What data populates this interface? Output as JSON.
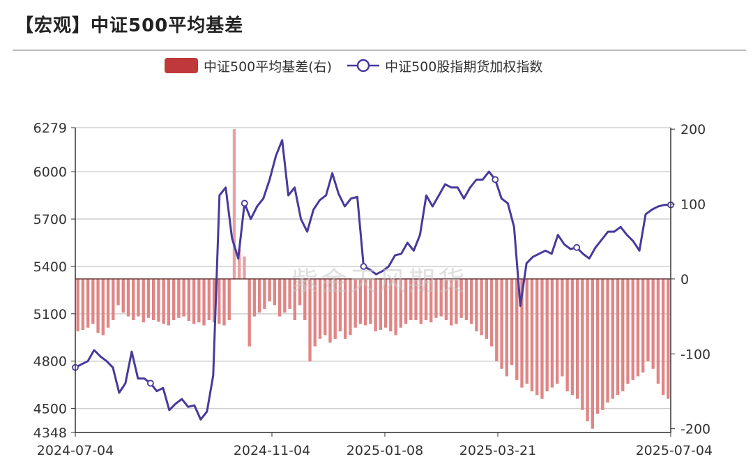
{
  "header": {
    "title": "【宏观】中证500平均基差"
  },
  "watermark": "紫金天风期货",
  "colors": {
    "basis_bar": "#e08585",
    "basis_bar_positive": "#e8a0a0",
    "index_line": "#463a9c",
    "legend_bar": "#c0393a",
    "grid": "#cfcfcf",
    "axis": "#333333"
  },
  "chart_data": {
    "type": "bar+line",
    "title": "【宏观】中证500平均基差",
    "legend": [
      "中证500平均基差(右)",
      "中证500股指期货加权指数"
    ],
    "legend_position": "top-center",
    "x_tick_labels": [
      "2024-07-04",
      "2024-11-04",
      "2025-01-08",
      "2025-03-21",
      "2025-07-04"
    ],
    "x_range": [
      "2024-07-04",
      "2025-07-04"
    ],
    "left_axis": {
      "ticks": [
        4348,
        4500,
        4800,
        5100,
        5400,
        5700,
        6000,
        6279
      ],
      "range": [
        4348,
        6279
      ]
    },
    "right_axis": {
      "ticks": [
        -200,
        -100,
        0,
        100,
        200
      ],
      "range": [
        -205,
        202
      ]
    },
    "grid": true,
    "series": [
      {
        "name": "中证500平均基差(右)",
        "type": "bar",
        "axis": "right",
        "approx_values_per_week": [
          -70,
          -68,
          -65,
          -60,
          -72,
          -75,
          -65,
          -55,
          -35,
          -45,
          -50,
          -55,
          -50,
          -58,
          -52,
          -55,
          -57,
          -60,
          -62,
          -55,
          -52,
          -50,
          -56,
          -60,
          -58,
          -62,
          -55,
          -58,
          -60,
          -62,
          -55,
          200,
          40,
          30,
          -90,
          -50,
          -45,
          -40,
          -30,
          -35,
          -50,
          -45,
          -40,
          -55,
          -35,
          -55,
          -110,
          -90,
          -80,
          -75,
          -85,
          -80,
          -70,
          -80,
          -75,
          -65,
          -60,
          -62,
          -60,
          -70,
          -68,
          -65,
          -70,
          -75,
          -65,
          -60,
          -55,
          -55,
          -60,
          -55,
          -58,
          -52,
          -50,
          -55,
          -62,
          -60,
          -52,
          -55,
          -60,
          -70,
          -75,
          -80,
          -90,
          -110,
          -120,
          -130,
          -115,
          -135,
          -145,
          -140,
          -150,
          -155,
          -160,
          -150,
          -145,
          -140,
          -130,
          -150,
          -155,
          -160,
          -175,
          -190,
          -200,
          -180,
          -175,
          -165,
          -160,
          -155,
          -150,
          -140,
          -135,
          -130,
          -125,
          -110,
          -120,
          -140,
          -155,
          -160
        ]
      },
      {
        "name": "中证500股指期货加权指数",
        "type": "line",
        "axis": "left",
        "approx_values_per_week": [
          4760,
          4780,
          4800,
          4870,
          4830,
          4800,
          4760,
          4600,
          4660,
          4860,
          4690,
          4690,
          4660,
          4610,
          4630,
          4490,
          4530,
          4560,
          4510,
          4520,
          4430,
          4480,
          4710,
          5850,
          5900,
          5580,
          5450,
          5800,
          5700,
          5780,
          5830,
          5950,
          6100,
          6200,
          5850,
          5900,
          5700,
          5620,
          5760,
          5820,
          5850,
          5990,
          5860,
          5780,
          5830,
          5840,
          5400,
          5380,
          5350,
          5370,
          5400,
          5470,
          5480,
          5550,
          5500,
          5600,
          5850,
          5780,
          5850,
          5920,
          5900,
          5900,
          5830,
          5900,
          5950,
          5950,
          6000,
          5950,
          5830,
          5800,
          5650,
          5150,
          5420,
          5460,
          5480,
          5500,
          5480,
          5600,
          5540,
          5510,
          5520,
          5480,
          5450,
          5520,
          5570,
          5620,
          5620,
          5650,
          5600,
          5560,
          5500,
          5730,
          5760,
          5780,
          5790,
          5790
        ]
      }
    ]
  }
}
